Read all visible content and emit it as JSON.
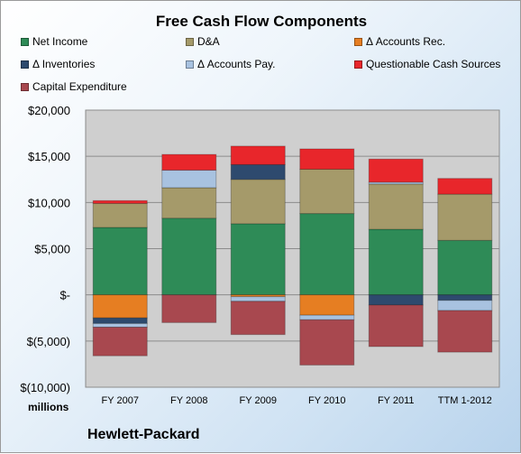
{
  "chart_data": {
    "type": "bar",
    "stacked": true,
    "title": "Free Cash Flow Components",
    "units_label": "millions",
    "company": "Hewlett-Packard",
    "categories": [
      "FY 2007",
      "FY 2008",
      "FY 2009",
      "FY 2010",
      "FY 2011",
      "TTM 1-2012"
    ],
    "ylim": [
      -10000,
      20000
    ],
    "yticks": [
      20000,
      15000,
      10000,
      5000,
      0,
      -5000,
      -10000
    ],
    "ytick_labels": [
      "$20,000",
      "$15,000",
      "$10,000",
      "$5,000",
      "$-",
      "$(5,000)",
      "$(10,000)"
    ],
    "grid": true,
    "legend_position": "top",
    "series": [
      {
        "name": "Net Income",
        "color": "#2e8b57",
        "values": [
          7300,
          8300,
          7700,
          8800,
          7100,
          5900
        ]
      },
      {
        "name": "D&A",
        "color": "#a59a6a",
        "values": [
          2600,
          3300,
          4800,
          4800,
          4900,
          5000
        ]
      },
      {
        "name": "Δ Accounts Rec.",
        "color": "#e67e22",
        "values": [
          -2500,
          0,
          -200,
          -2200,
          0,
          0
        ]
      },
      {
        "name": "Δ Inventories",
        "color": "#2e4a6e",
        "values": [
          -600,
          0,
          1600,
          0,
          -1100,
          -600
        ]
      },
      {
        "name": "Δ Accounts Pay.",
        "color": "#a8c2e0",
        "values": [
          -400,
          1900,
          -500,
          -500,
          200,
          -1100
        ]
      },
      {
        "name": "Questionable Cash Sources",
        "color": "#e8262b",
        "values": [
          300,
          1700,
          2000,
          2200,
          2500,
          1700
        ]
      },
      {
        "name": "Capital Expenditure",
        "color": "#a8484f",
        "values": [
          -3100,
          -3000,
          -3600,
          -4900,
          -4500,
          -4500
        ]
      }
    ]
  }
}
